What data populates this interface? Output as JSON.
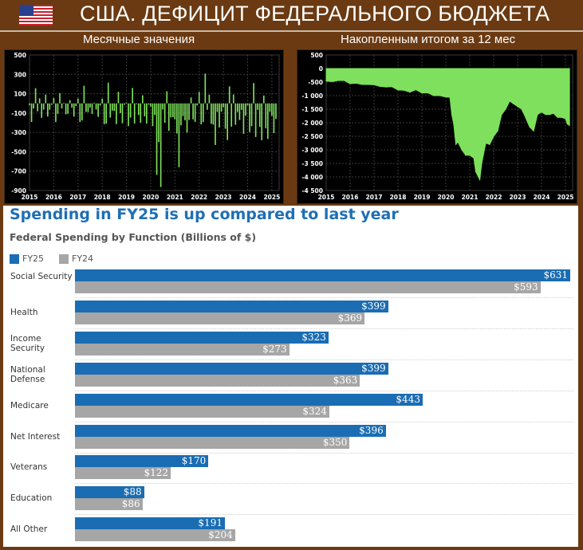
{
  "header": {
    "title": "США. ДЕФИЦИТ ФЕДЕРАЛЬНОГО БЮДЖЕТА",
    "flag_icon": "us-flag-icon",
    "subtitle_left": "Месячные значения",
    "subtitle_right": "Накопленным итогом за 12 мес"
  },
  "colors": {
    "background": "#6b3a12",
    "chart_bg": "#000000",
    "deficit_green": "#7ee05c",
    "fy25": "#1a6db3",
    "fy24": "#a6a6a6",
    "title_blue": "#1f6fb5"
  },
  "chart_data": [
    {
      "type": "bar",
      "xlabel": "",
      "ylabel": "",
      "x_ticks": [
        "2015",
        "2016",
        "2017",
        "2018",
        "2019",
        "2020",
        "2021",
        "2022",
        "2023",
        "2024",
        "2025"
      ],
      "y_ticks": [
        "500",
        "300",
        "100",
        "-100",
        "-300",
        "-500",
        "-700",
        "-900"
      ],
      "ylim": [
        -900,
        500
      ],
      "xlim": [
        2015,
        2025.3
      ],
      "grid": true,
      "series_color": "#7ee05c",
      "x": [
        2015.0,
        2015.083,
        2015.167,
        2015.25,
        2015.333,
        2015.417,
        2015.5,
        2015.583,
        2015.667,
        2015.75,
        2015.833,
        2015.917,
        2016.0,
        2016.083,
        2016.167,
        2016.25,
        2016.333,
        2016.417,
        2016.5,
        2016.583,
        2016.667,
        2016.75,
        2016.833,
        2016.917,
        2017.0,
        2017.083,
        2017.167,
        2017.25,
        2017.333,
        2017.417,
        2017.5,
        2017.583,
        2017.667,
        2017.75,
        2017.833,
        2017.917,
        2018.0,
        2018.083,
        2018.167,
        2018.25,
        2018.333,
        2018.417,
        2018.5,
        2018.583,
        2018.667,
        2018.75,
        2018.833,
        2018.917,
        2019.0,
        2019.083,
        2019.167,
        2019.25,
        2019.333,
        2019.417,
        2019.5,
        2019.583,
        2019.667,
        2019.75,
        2019.833,
        2019.917,
        2020.0,
        2020.083,
        2020.167,
        2020.25,
        2020.333,
        2020.417,
        2020.5,
        2020.583,
        2020.667,
        2020.75,
        2020.833,
        2020.917,
        2021.0,
        2021.083,
        2021.167,
        2021.25,
        2021.333,
        2021.417,
        2021.5,
        2021.583,
        2021.667,
        2021.75,
        2021.833,
        2021.917,
        2022.0,
        2022.083,
        2022.167,
        2022.25,
        2022.333,
        2022.417,
        2022.5,
        2022.583,
        2022.667,
        2022.75,
        2022.833,
        2022.917,
        2023.0,
        2023.083,
        2023.167,
        2023.25,
        2023.333,
        2023.417,
        2023.5,
        2023.583,
        2023.667,
        2023.75,
        2023.833,
        2023.917,
        2024.0,
        2024.083,
        2024.167,
        2024.25,
        2024.333,
        2024.417,
        2024.5,
        2024.583,
        2024.667,
        2024.75,
        2024.833,
        2024.917,
        2025.0,
        2025.083,
        2025.167
      ],
      "values": [
        -18,
        -192,
        -53,
        157,
        -82,
        52,
        -149,
        -64,
        91,
        -136,
        -65,
        -14,
        55,
        -193,
        -108,
        106,
        -53,
        6,
        -113,
        -107,
        33,
        -44,
        -137,
        -27,
        51,
        -192,
        -176,
        182,
        -88,
        -90,
        -43,
        -108,
        8,
        -63,
        -139,
        -23,
        49,
        -215,
        -209,
        214,
        -147,
        -75,
        -77,
        -214,
        119,
        -100,
        -205,
        -14,
        9,
        -234,
        -147,
        160,
        -208,
        -8,
        -120,
        -200,
        83,
        -134,
        -209,
        -13,
        -33,
        -235,
        -119,
        -738,
        -399,
        -864,
        -63,
        -200,
        125,
        -284,
        -145,
        -143,
        -163,
        -311,
        -660,
        -226,
        -132,
        -174,
        -302,
        -171,
        62,
        -165,
        -191,
        -21,
        119,
        -217,
        -193,
        308,
        -66,
        89,
        -211,
        -220,
        -430,
        -88,
        -249,
        -85,
        -39,
        -262,
        -378,
        176,
        -240,
        92,
        -221,
        -89,
        -171,
        -67,
        -314,
        -129,
        -22,
        -296,
        -236,
        210,
        -347,
        -66,
        -244,
        -380,
        81,
        -257,
        -367,
        -87,
        -129,
        -307,
        -161
      ]
    },
    {
      "type": "area",
      "xlabel": "",
      "ylabel": "",
      "x_ticks": [
        "2015",
        "2016",
        "2017",
        "2018",
        "2019",
        "2020",
        "2021",
        "2022",
        "2023",
        "2024",
        "2025"
      ],
      "y_ticks": [
        "500",
        "0",
        "-500",
        "-1 000",
        "-1 500",
        "-2 000",
        "-2 500",
        "-3 000",
        "-3 500",
        "-4 000",
        "-4 500"
      ],
      "ylim": [
        -4500,
        500
      ],
      "xlim": [
        2015,
        2025.3
      ],
      "grid": true,
      "series_color": "#7ee05c",
      "x": [
        2015.0,
        2015.25,
        2015.5,
        2015.75,
        2016.0,
        2016.25,
        2016.5,
        2016.75,
        2017.0,
        2017.25,
        2017.5,
        2017.75,
        2018.0,
        2018.25,
        2018.5,
        2018.75,
        2019.0,
        2019.25,
        2019.5,
        2019.75,
        2020.0,
        2020.17,
        2020.25,
        2020.33,
        2020.42,
        2020.5,
        2020.67,
        2020.83,
        2021.0,
        2021.17,
        2021.25,
        2021.42,
        2021.5,
        2021.67,
        2021.83,
        2022.0,
        2022.17,
        2022.33,
        2022.5,
        2022.67,
        2022.83,
        2023.0,
        2023.17,
        2023.33,
        2023.5,
        2023.67,
        2023.83,
        2024.0,
        2024.17,
        2024.33,
        2024.5,
        2024.67,
        2024.83,
        2025.0,
        2025.08,
        2025.17
      ],
      "values": [
        -460,
        -480,
        -440,
        -440,
        -560,
        -540,
        -590,
        -590,
        -600,
        -660,
        -680,
        -670,
        -790,
        -800,
        -870,
        -780,
        -900,
        -900,
        -1000,
        -1000,
        -1050,
        -1060,
        -1700,
        -2050,
        -2800,
        -2700,
        -3000,
        -3200,
        -3200,
        -3300,
        -3800,
        -4100,
        -3500,
        -2750,
        -2800,
        -2500,
        -2300,
        -1700,
        -1500,
        -1200,
        -1300,
        -1400,
        -1500,
        -1800,
        -2150,
        -2300,
        -1700,
        -1600,
        -1700,
        -1700,
        -1650,
        -1800,
        -1800,
        -1850,
        -2050,
        -2100
      ]
    },
    {
      "type": "bar",
      "title": "Spending in FY25 is up compared to last year",
      "subtitle": "Federal Spending by Function (Billions of $)",
      "orientation": "horizontal",
      "legend": "top-left",
      "categories": [
        "Social Security",
        "Health",
        "Income Security",
        "National Defense",
        "Medicare",
        "Net Interest",
        "Veterans",
        "Education",
        "All Other"
      ],
      "series": [
        {
          "name": "FY25",
          "color": "#1a6db3",
          "values": [
            631,
            399,
            323,
            399,
            443,
            396,
            170,
            88,
            191
          ]
        },
        {
          "name": "FY24",
          "color": "#a6a6a6",
          "values": [
            593,
            369,
            273,
            363,
            324,
            350,
            122,
            86,
            204
          ]
        }
      ],
      "value_labels": {
        "FY25": [
          "$631",
          "$399",
          "$323",
          "$399",
          "$443",
          "$396",
          "$170",
          "$88",
          "$191"
        ],
        "FY24": [
          "$593",
          "$369",
          "$273",
          "$363",
          "$324",
          "$350",
          "$122",
          "$86",
          "$204"
        ]
      },
      "xlim": [
        0,
        631
      ]
    }
  ]
}
